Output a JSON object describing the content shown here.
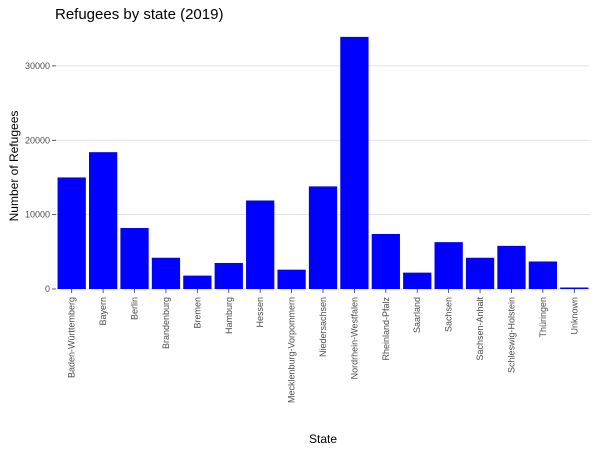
{
  "chart_data": {
    "type": "bar",
    "title": "Refugees by state (2019)",
    "xlabel": "State",
    "ylabel": "Number of Refugees",
    "categories": [
      "Baden-Württemberg",
      "Bayern",
      "Berlin",
      "Brandenburg",
      "Bremen",
      "Hamburg",
      "Hessen",
      "Mecklenburg-Vorpommern",
      "Niedersachsen",
      "Nordrhein-Westfalen",
      "Rheinland-Pfalz",
      "Saarland",
      "Sachsen",
      "Sachsen-Anhalt",
      "Schleswig-Holstein",
      "Thüringen",
      "Unknown"
    ],
    "values": [
      15000,
      18400,
      8200,
      4200,
      1800,
      3500,
      11900,
      2600,
      13800,
      33900,
      7400,
      2200,
      6300,
      4200,
      5800,
      3700,
      200
    ],
    "ylim": [
      0,
      35500
    ],
    "yticks": [
      0,
      10000,
      20000,
      30000
    ],
    "bar_color": "#0000ff",
    "grid": true,
    "legend": "none"
  }
}
